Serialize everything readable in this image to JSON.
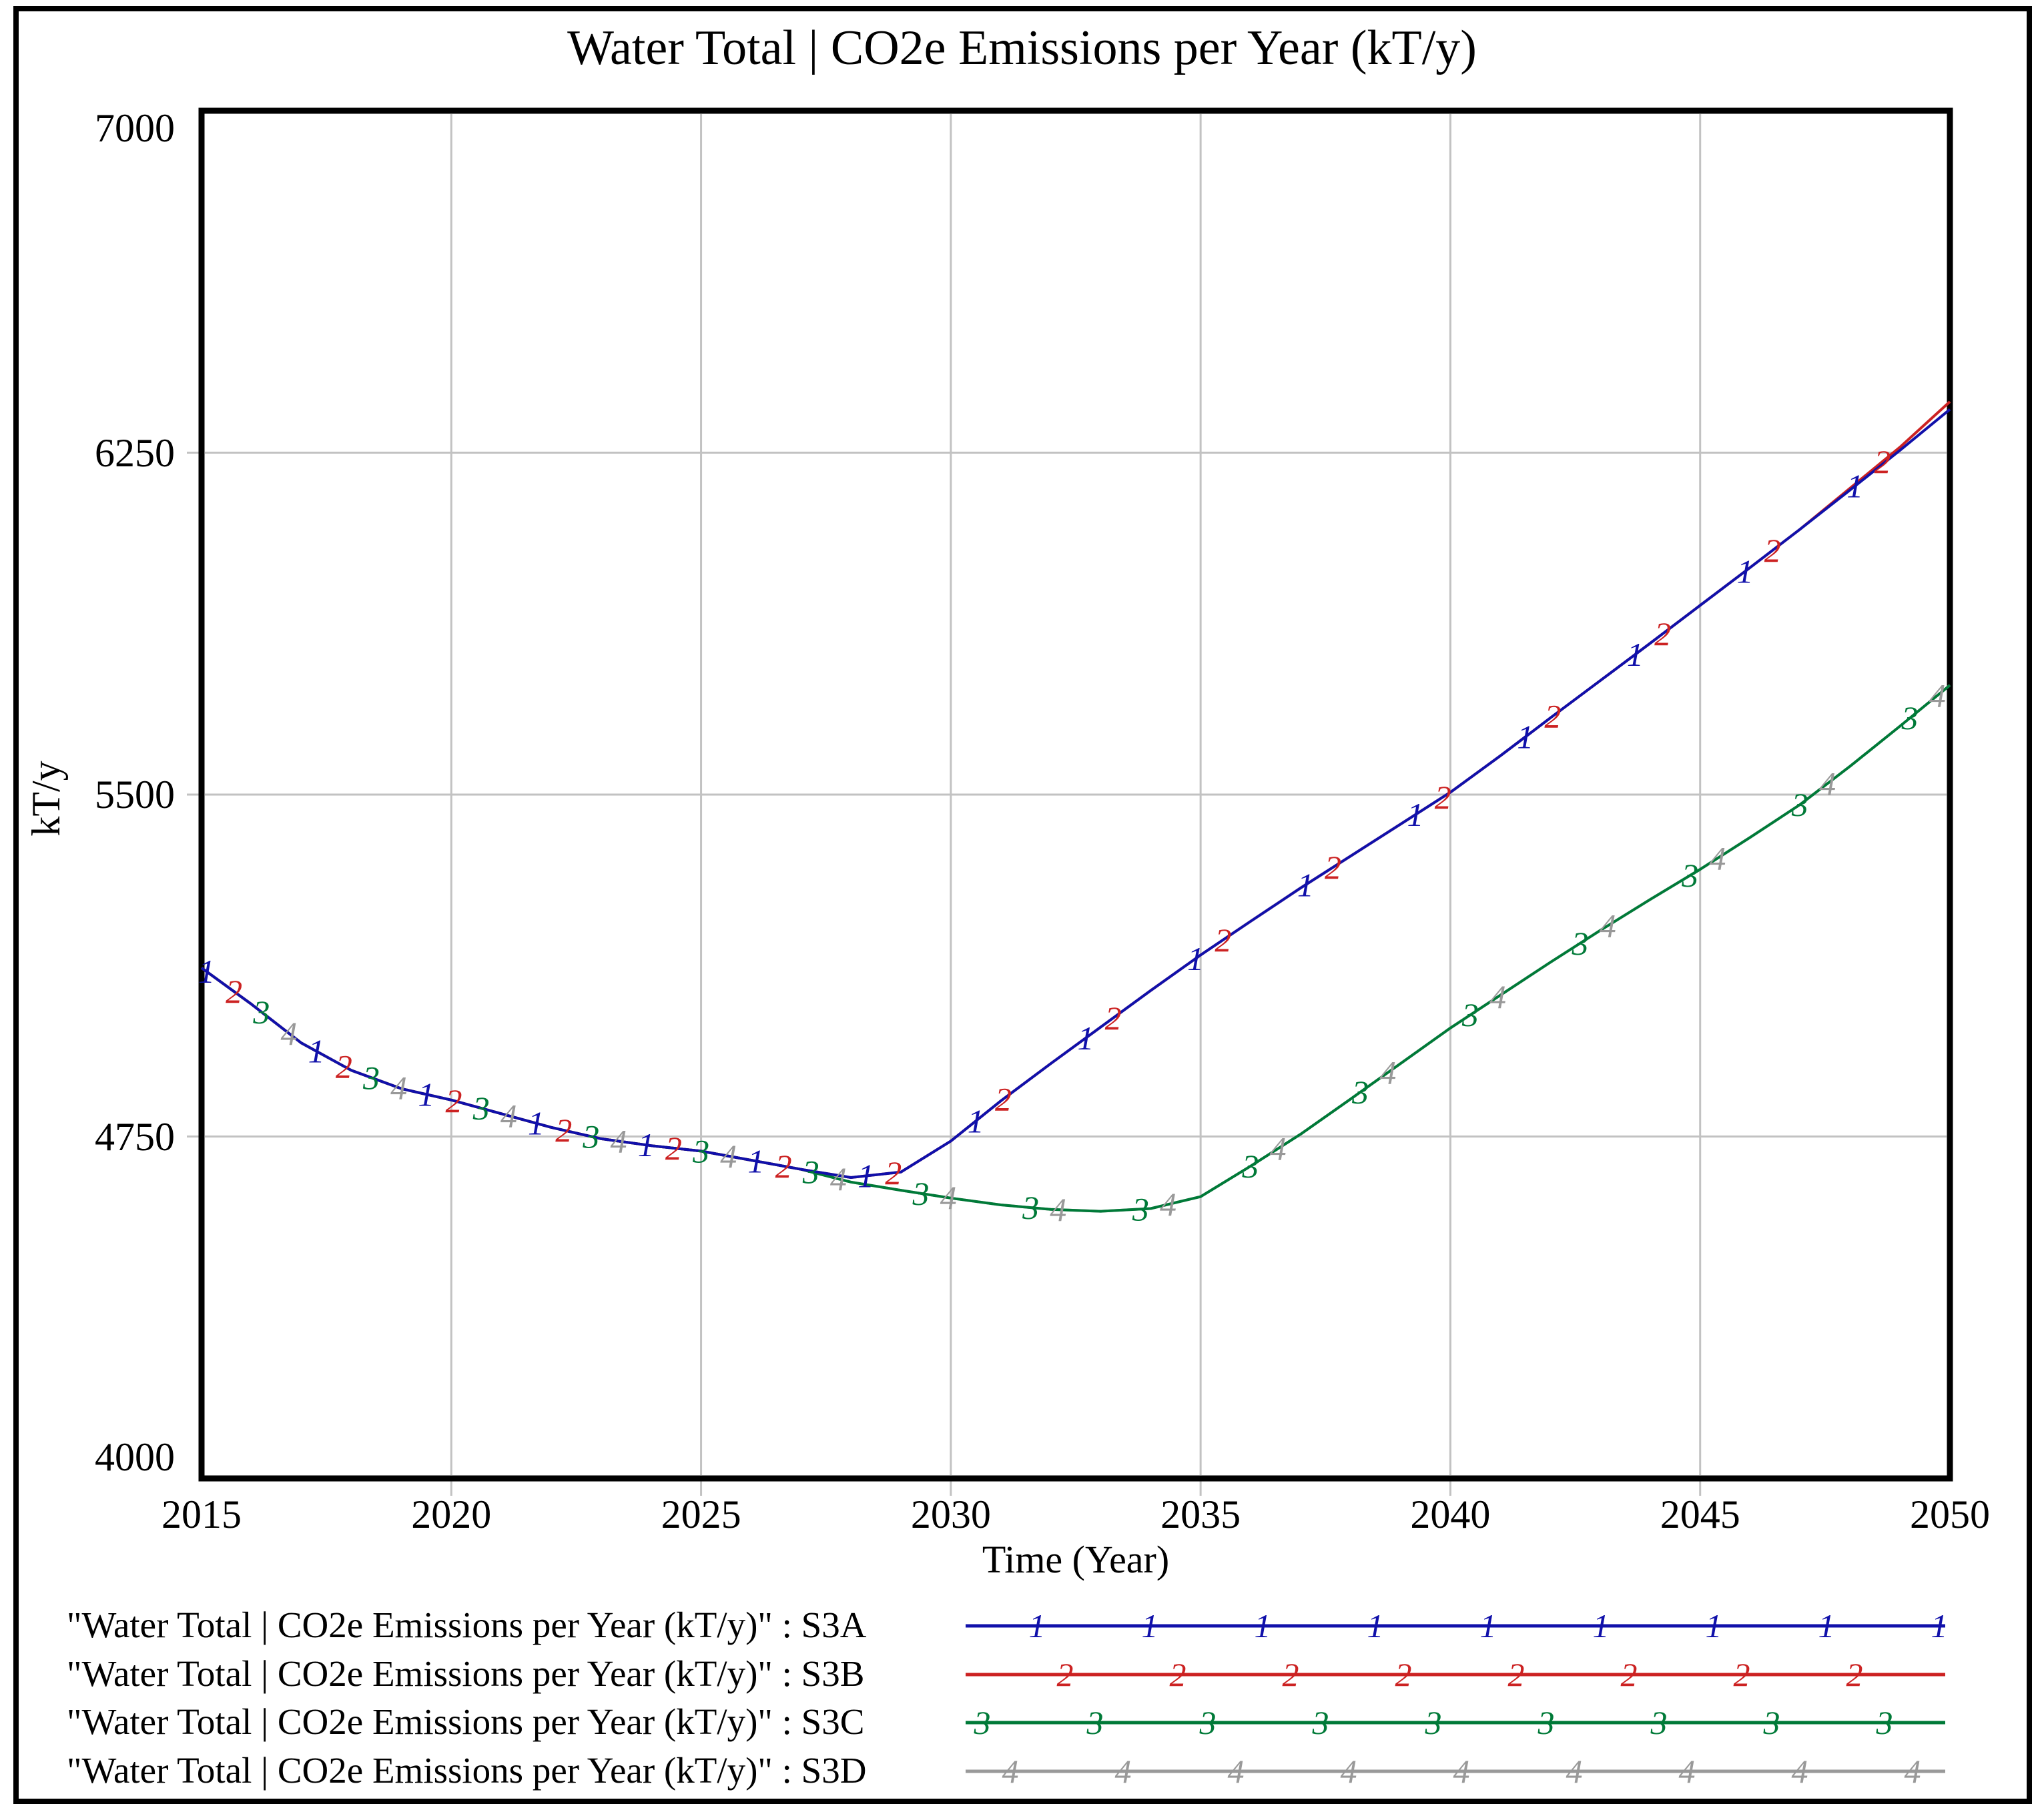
{
  "page": {
    "title": "Water Total | CO2e Emissions per Year (kT/y)"
  },
  "axes": {
    "y_label": "kT/y",
    "x_label": "Time (Year)",
    "y_tick_labels": [
      "7000",
      "6250",
      "5500",
      "4750",
      "4000"
    ],
    "y_tick_values": [
      7000,
      6250,
      5500,
      4750,
      4000
    ],
    "x_tick_labels": [
      "2015",
      "2020",
      "2025",
      "2030",
      "2035",
      "2040",
      "2045",
      "2050"
    ],
    "x_tick_values": [
      2015,
      2020,
      2025,
      2030,
      2035,
      2040,
      2045,
      2050
    ]
  },
  "colors": {
    "s3a_blue": "#1010aa",
    "s3b_red": "#cc2222",
    "s3c_green": "#007a38",
    "s3d_gray": "#999999",
    "grid": "#c2c2c2",
    "frame": "#000000"
  },
  "chart_data": {
    "type": "line",
    "title": "Water Total | CO2e Emissions per Year (kT/y)",
    "xlabel": "Time (Year)",
    "ylabel": "kT/y",
    "xlim": [
      2015,
      2050
    ],
    "ylim": [
      4000,
      7000
    ],
    "grid": true,
    "legend_position": "bottom",
    "x": [
      2015,
      2016,
      2017,
      2018,
      2019,
      2020,
      2021,
      2022,
      2023,
      2024,
      2025,
      2026,
      2027,
      2028,
      2029,
      2030,
      2031,
      2032,
      2033,
      2034,
      2035,
      2036,
      2037,
      2038,
      2039,
      2040,
      2041,
      2042,
      2043,
      2044,
      2045,
      2046,
      2047,
      2048,
      2049,
      2050
    ],
    "marker_interval_years": 2.2,
    "marker_offsets": [
      2015.1,
      2015.65,
      2016.2,
      2016.75
    ],
    "series": [
      {
        "name": "S3A",
        "marker": "1",
        "color": "#1010aa",
        "values": [
          5120,
          5040,
          4955,
          4895,
          4855,
          4830,
          4800,
          4770,
          4745,
          4730,
          4718,
          4698,
          4678,
          4660,
          4672,
          4740,
          4828,
          4910,
          4990,
          5070,
          5148,
          5222,
          5295,
          5365,
          5435,
          5505,
          5585,
          5668,
          5750,
          5832,
          5915,
          5998,
          6082,
          6168,
          6255,
          6345
        ]
      },
      {
        "name": "S3B",
        "marker": "2",
        "color": "#cc2222",
        "values": [
          5120,
          5040,
          4955,
          4895,
          4855,
          4830,
          4800,
          4770,
          4745,
          4730,
          4718,
          4698,
          4678,
          4660,
          4672,
          4740,
          4828,
          4910,
          4990,
          5070,
          5148,
          5222,
          5295,
          5365,
          5435,
          5505,
          5585,
          5668,
          5750,
          5832,
          5915,
          5998,
          6082,
          6172,
          6262,
          6362
        ]
      },
      {
        "name": "S3C",
        "marker": "3",
        "color": "#007a38",
        "values": [
          5120,
          5040,
          4955,
          4895,
          4855,
          4830,
          4800,
          4770,
          4745,
          4730,
          4718,
          4698,
          4678,
          4650,
          4632,
          4615,
          4600,
          4590,
          4586,
          4592,
          4618,
          4685,
          4755,
          4832,
          4910,
          4988,
          5060,
          5132,
          5202,
          5270,
          5336,
          5406,
          5478,
          5562,
          5650,
          5740
        ]
      },
      {
        "name": "S3D",
        "marker": "4",
        "color": "#999999",
        "values": [
          5120,
          5040,
          4955,
          4895,
          4855,
          4830,
          4800,
          4770,
          4745,
          4730,
          4718,
          4698,
          4678,
          4650,
          4632,
          4615,
          4600,
          4590,
          4586,
          4592,
          4618,
          4685,
          4755,
          4832,
          4910,
          4988,
          5060,
          5132,
          5202,
          5270,
          5336,
          5406,
          5478,
          5562,
          5650,
          5740
        ]
      }
    ]
  },
  "legend": {
    "rows": [
      {
        "label": "\"Water Total | CO2e Emissions per Year (kT/y)\" : S3A",
        "series": "S3A",
        "marker": "1",
        "color": "#1010aa"
      },
      {
        "label": "\"Water Total | CO2e Emissions per Year (kT/y)\" : S3B",
        "series": "S3B",
        "marker": "2",
        "color": "#cc2222"
      },
      {
        "label": "\"Water Total | CO2e Emissions per Year (kT/y)\" : S3C",
        "series": "S3C",
        "marker": "3",
        "color": "#007a38"
      },
      {
        "label": "\"Water Total | CO2e Emissions per Year (kT/y)\" : S3D",
        "series": "S3D",
        "marker": "4",
        "color": "#999999"
      }
    ]
  }
}
